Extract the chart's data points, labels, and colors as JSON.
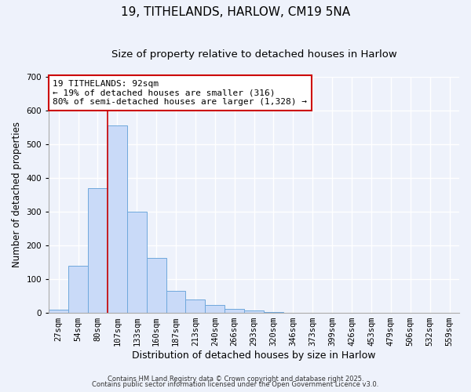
{
  "title": "19, TITHELANDS, HARLOW, CM19 5NA",
  "subtitle": "Size of property relative to detached houses in Harlow",
  "xlabel": "Distribution of detached houses by size in Harlow",
  "ylabel": "Number of detached properties",
  "bar_labels": [
    "27sqm",
    "54sqm",
    "80sqm",
    "107sqm",
    "133sqm",
    "160sqm",
    "187sqm",
    "213sqm",
    "240sqm",
    "266sqm",
    "293sqm",
    "320sqm",
    "346sqm",
    "373sqm",
    "399sqm",
    "426sqm",
    "453sqm",
    "479sqm",
    "506sqm",
    "532sqm",
    "559sqm"
  ],
  "bar_heights": [
    10,
    140,
    370,
    555,
    300,
    163,
    65,
    40,
    23,
    12,
    7,
    2,
    1,
    0,
    0,
    0,
    0,
    0,
    0,
    0,
    0
  ],
  "bar_color": "#c9daf8",
  "bar_edgecolor": "#6fa8dc",
  "ylim": [
    0,
    700
  ],
  "yticks": [
    0,
    100,
    200,
    300,
    400,
    500,
    600,
    700
  ],
  "red_line_x": 2.5,
  "annotation_title": "19 TITHELANDS: 92sqm",
  "annotation_line1": "← 19% of detached houses are smaller (316)",
  "annotation_line2": "80% of semi-detached houses are larger (1,328) →",
  "annotation_box_color": "#ffffff",
  "annotation_box_edgecolor": "#cc0000",
  "red_line_color": "#cc0000",
  "background_color": "#eef2fb",
  "grid_color": "#ffffff",
  "footnote1": "Contains HM Land Registry data © Crown copyright and database right 2025.",
  "footnote2": "Contains public sector information licensed under the Open Government Licence v3.0.",
  "title_fontsize": 11,
  "subtitle_fontsize": 9.5,
  "xlabel_fontsize": 9,
  "ylabel_fontsize": 8.5,
  "tick_fontsize": 7.5,
  "annotation_fontsize": 8,
  "footnote_fontsize": 6
}
